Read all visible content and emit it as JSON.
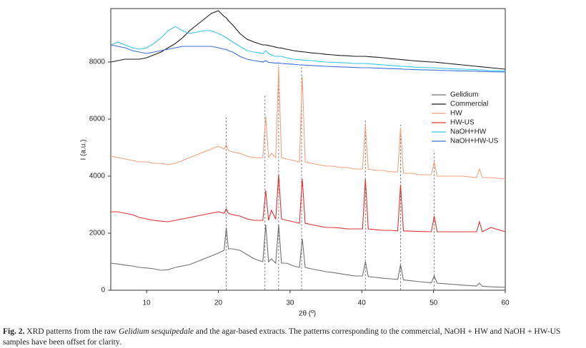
{
  "chart_data": {
    "type": "line",
    "xlabel": "2θ (º)",
    "ylabel": "I (a.u.)",
    "xlim": [
      5,
      60
    ],
    "ylim": [
      0,
      9875
    ],
    "xticks": [
      10,
      20,
      30,
      40,
      50,
      60
    ],
    "yticks": [
      0,
      2000,
      4000,
      6000,
      8000
    ],
    "legend": "right",
    "x": [
      5,
      6,
      7,
      8,
      9,
      10,
      11,
      12,
      13,
      14,
      15,
      16,
      17,
      18,
      19,
      20,
      20.8,
      21.1,
      21.4,
      22,
      23,
      24,
      25,
      26.2,
      26.6,
      27,
      27.4,
      28,
      28.4,
      28.8,
      29.5,
      30.5,
      31.3,
      31.7,
      32.1,
      33,
      34,
      35,
      36,
      37,
      38,
      39,
      40.1,
      40.5,
      40.9,
      42,
      43,
      44,
      45,
      45.4,
      45.8,
      47,
      48,
      49.7,
      50.1,
      50.5,
      52,
      54,
      56,
      56.4,
      56.8,
      58,
      60
    ],
    "series": [
      {
        "name": "Gelidium",
        "color": "#707070",
        "values": [
          950,
          920,
          880,
          850,
          800,
          780,
          750,
          700,
          720,
          800,
          850,
          900,
          1000,
          1100,
          1200,
          1300,
          1400,
          2200,
          1450,
          1450,
          1400,
          1250,
          1100,
          1000,
          2300,
          1000,
          1100,
          950,
          2300,
          950,
          950,
          850,
          800,
          1800,
          800,
          750,
          700,
          650,
          620,
          580,
          540,
          500,
          500,
          1000,
          480,
          450,
          420,
          400,
          380,
          900,
          360,
          330,
          300,
          260,
          500,
          250,
          220,
          180,
          150,
          250,
          140,
          120,
          100
        ]
      },
      {
        "name": "Commercial",
        "color": "#1a1a1a",
        "values": [
          8000,
          8050,
          8100,
          8100,
          8100,
          8150,
          8250,
          8350,
          8500,
          8650,
          8850,
          9100,
          9300,
          9500,
          9700,
          9800,
          9600,
          9550,
          9450,
          9300,
          9000,
          8800,
          8700,
          8600,
          8600,
          8580,
          8560,
          8520,
          8500,
          8490,
          8450,
          8400,
          8370,
          8360,
          8350,
          8320,
          8300,
          8270,
          8250,
          8230,
          8220,
          8200,
          8200,
          8200,
          8190,
          8170,
          8150,
          8120,
          8100,
          8090,
          8080,
          8050,
          8030,
          8000,
          8000,
          7990,
          7950,
          7900,
          7850,
          7840,
          7830,
          7800,
          7750
        ]
      },
      {
        "name": "HW",
        "color": "#f5a07a",
        "values": [
          4700,
          4650,
          4600,
          4550,
          4500,
          4500,
          4450,
          4450,
          4400,
          4450,
          4550,
          4650,
          4750,
          4850,
          4950,
          5050,
          4950,
          5100,
          4900,
          4850,
          4800,
          4700,
          4650,
          4650,
          6100,
          4650,
          4800,
          4650,
          7800,
          4650,
          4600,
          4550,
          4500,
          7500,
          4500,
          4450,
          4400,
          4350,
          4350,
          4300,
          4300,
          4250,
          4250,
          5800,
          4250,
          4200,
          4200,
          4150,
          4150,
          5700,
          4100,
          4100,
          4050,
          4050,
          4500,
          4000,
          4000,
          4000,
          3950,
          4250,
          3950,
          3950,
          3900
        ]
      },
      {
        "name": "HW-US",
        "color": "#e03030",
        "values": [
          2750,
          2750,
          2700,
          2650,
          2550,
          2500,
          2450,
          2420,
          2400,
          2450,
          2500,
          2550,
          2600,
          2650,
          2700,
          2750,
          2700,
          2850,
          2700,
          2650,
          2600,
          2500,
          2450,
          2450,
          3500,
          2450,
          2800,
          2500,
          4050,
          2500,
          2450,
          2400,
          2350,
          3900,
          2350,
          2300,
          2250,
          2200,
          2200,
          2180,
          2150,
          2150,
          2150,
          3900,
          2150,
          2120,
          2100,
          2100,
          2080,
          3700,
          2080,
          2070,
          2060,
          2050,
          2600,
          2050,
          2050,
          2050,
          2050,
          2400,
          2050,
          2200,
          2050
        ]
      },
      {
        "name": "NaOH+HW",
        "color": "#33c6e8",
        "values": [
          8600,
          8700,
          8600,
          8500,
          8450,
          8500,
          8650,
          8850,
          9100,
          9250,
          9100,
          9000,
          9050,
          9100,
          9100,
          9000,
          8900,
          8850,
          8800,
          8700,
          8550,
          8400,
          8350,
          8300,
          8400,
          8300,
          8250,
          8200,
          8200,
          8200,
          8150,
          8100,
          8080,
          8070,
          8060,
          8050,
          8020,
          8000,
          7990,
          7980,
          7970,
          7950,
          7950,
          7950,
          7940,
          7920,
          7900,
          7880,
          7860,
          7850,
          7850,
          7830,
          7810,
          7800,
          7800,
          7790,
          7770,
          7750,
          7730,
          7720,
          7720,
          7700,
          7680
        ]
      },
      {
        "name": "NaOH+HW-US",
        "color": "#3a6fd8",
        "values": [
          8600,
          8550,
          8500,
          8400,
          8350,
          8300,
          8350,
          8400,
          8450,
          8500,
          8550,
          8550,
          8550,
          8550,
          8550,
          8500,
          8450,
          8450,
          8400,
          8350,
          8200,
          8100,
          8050,
          8000,
          8050,
          7990,
          7980,
          7960,
          7970,
          7950,
          7940,
          7920,
          7900,
          7900,
          7890,
          7880,
          7860,
          7850,
          7840,
          7830,
          7820,
          7810,
          7800,
          7800,
          7800,
          7790,
          7780,
          7770,
          7760,
          7760,
          7750,
          7740,
          7730,
          7720,
          7720,
          7710,
          7700,
          7690,
          7680,
          7670,
          7670,
          7660,
          7650
        ]
      }
    ],
    "reference_lines": [
      {
        "x": 21.1,
        "y": 6050
      },
      {
        "x": 26.5,
        "y": 6850
      },
      {
        "x": 28.4,
        "y": 7900
      },
      {
        "x": 31.6,
        "y": 7900
      },
      {
        "x": 40.5,
        "y": 5950
      },
      {
        "x": 45.4,
        "y": 5800
      },
      {
        "x": 50.1,
        "y": 4900
      }
    ]
  },
  "caption": {
    "label": "Fig. 2.",
    "text_before": "XRD patterns from the raw",
    "italic": "Gelidium sesquipedale",
    "text_after": "and the agar-based extracts. The patterns corresponding to the commercial, NaOH + HW and NaOH + HW-US samples have been offset for clarity."
  }
}
